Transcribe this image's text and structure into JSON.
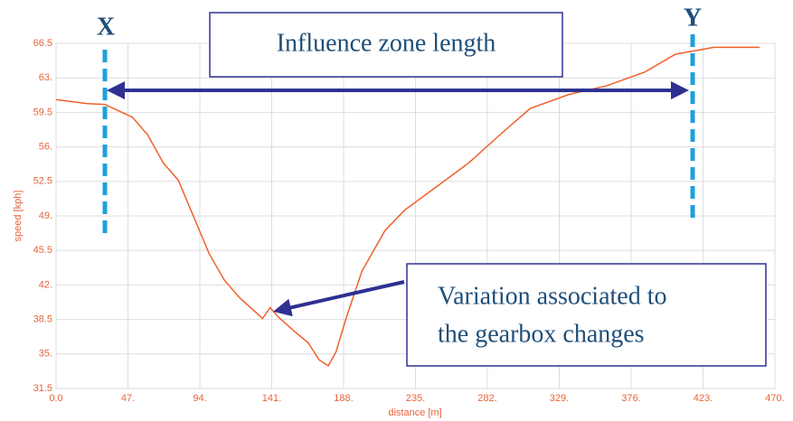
{
  "chart_data": {
    "type": "line",
    "x": [
      0,
      20,
      32,
      50,
      60,
      70,
      80,
      90,
      100,
      110,
      120,
      130,
      135,
      140,
      145,
      155,
      165,
      172,
      178,
      183,
      190,
      200,
      215,
      228,
      250,
      270,
      290,
      310,
      335,
      360,
      385,
      405,
      430,
      460
    ],
    "values": [
      60.8,
      60.4,
      60.3,
      59.0,
      57.2,
      54.4,
      52.6,
      48.9,
      45.2,
      42.5,
      40.7,
      39.3,
      38.6,
      39.7,
      38.8,
      37.4,
      36.1,
      34.4,
      33.8,
      35.2,
      38.8,
      43.4,
      47.5,
      49.6,
      52.1,
      54.4,
      57.2,
      59.9,
      61.3,
      62.2,
      63.6,
      65.4,
      66.1,
      66.1
    ],
    "color": "#f0602a",
    "xlabel": "distance [m]",
    "ylabel": "speed [kph]",
    "xlim": [
      0,
      470
    ],
    "ylim": [
      31.5,
      66.5
    ],
    "xticks": [
      {
        "value": 0,
        "label": "0.0"
      },
      {
        "value": 47,
        "label": "47."
      },
      {
        "value": 94,
        "label": "94."
      },
      {
        "value": 141,
        "label": "141."
      },
      {
        "value": 188,
        "label": "188."
      },
      {
        "value": 235,
        "label": "235."
      },
      {
        "value": 282,
        "label": "282."
      },
      {
        "value": 329,
        "label": "329."
      },
      {
        "value": 376,
        "label": "376."
      },
      {
        "value": 423,
        "label": "423."
      },
      {
        "value": 470,
        "label": "470."
      }
    ],
    "yticks": [
      31.5,
      {
        "value": 35,
        "label": "35."
      },
      38.5,
      {
        "value": 42,
        "label": "42."
      },
      45.5,
      {
        "value": 49,
        "label": "49."
      },
      52.5,
      {
        "value": 56,
        "label": "56."
      },
      59.5,
      {
        "value": 63,
        "label": "63."
      },
      66.5
    ],
    "grid": true,
    "annotations": [
      "X",
      "Y",
      "Influence zone length",
      "Variation associated to",
      "the gearbox changes"
    ]
  }
}
